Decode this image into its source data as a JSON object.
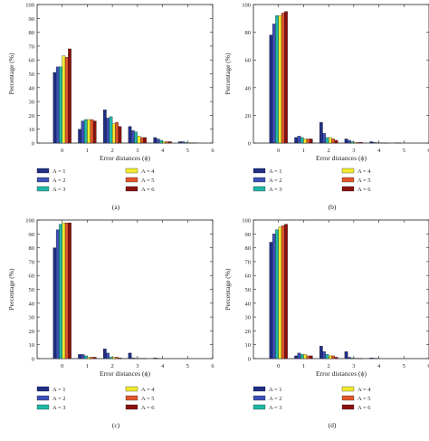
{
  "series_colors": [
    "#1f2e86",
    "#3d4fb4",
    "#20b8a6",
    "#f2ea2e",
    "#e0562b",
    "#8b1010"
  ],
  "chart_data": [
    {
      "type": "bar",
      "panel_label": "(a)",
      "xlabel": "Error distances (ϕ)",
      "ylabel": "Percentage (%)",
      "xlim": [
        -1,
        6
      ],
      "ylim": [
        0,
        100
      ],
      "x_ticks": [
        0,
        1,
        2,
        3,
        4,
        5,
        6
      ],
      "y_ticks": [
        0,
        10,
        20,
        30,
        40,
        50,
        60,
        70,
        80,
        90,
        100
      ],
      "categories": [
        0,
        1,
        2,
        3,
        4,
        5
      ],
      "series": [
        {
          "name": "A = 1",
          "values": [
            51,
            10,
            24,
            12,
            4,
            1
          ]
        },
        {
          "name": "A = 2",
          "values": [
            55,
            16,
            18,
            9,
            3,
            1
          ]
        },
        {
          "name": "A = 3",
          "values": [
            55,
            17,
            19,
            8,
            2,
            0.5
          ]
        },
        {
          "name": "A = 4",
          "values": [
            63,
            17,
            14,
            5,
            1,
            0.3
          ]
        },
        {
          "name": "A = 5",
          "values": [
            62,
            17,
            15,
            4,
            1,
            0.2
          ]
        },
        {
          "name": "A = 6",
          "values": [
            68,
            16,
            12,
            4,
            1,
            0.2
          ]
        }
      ]
    },
    {
      "type": "bar",
      "panel_label": "(b)",
      "xlabel": "Error distances (ϕ)",
      "ylabel": "Percentage (%)",
      "xlim": [
        -1,
        6
      ],
      "ylim": [
        0,
        100
      ],
      "x_ticks": [
        0,
        1,
        2,
        3,
        4,
        5,
        6
      ],
      "y_ticks": [
        0,
        20,
        40,
        60,
        80,
        100
      ],
      "categories": [
        0,
        1,
        2,
        3,
        4,
        5
      ],
      "series": [
        {
          "name": "A = 1",
          "values": [
            78,
            4,
            15,
            3,
            1,
            0.2
          ]
        },
        {
          "name": "A = 2",
          "values": [
            86,
            5,
            7,
            2,
            0.5,
            0.1
          ]
        },
        {
          "name": "A = 3",
          "values": [
            92,
            4,
            4,
            1,
            0.3,
            0
          ]
        },
        {
          "name": "A = 4",
          "values": [
            92,
            3,
            4,
            0.5,
            0.2,
            0
          ]
        },
        {
          "name": "A = 5",
          "values": [
            94,
            3,
            3,
            0.5,
            0.2,
            0
          ]
        },
        {
          "name": "A = 6",
          "values": [
            95,
            3,
            2,
            0.5,
            0.1,
            0
          ]
        }
      ]
    },
    {
      "type": "bar",
      "panel_label": "(c)",
      "xlabel": "Error distances (ϕ)",
      "ylabel": "Percentage (%)",
      "xlim": [
        -1,
        6
      ],
      "ylim": [
        0,
        100
      ],
      "x_ticks": [
        0,
        1,
        2,
        3,
        4,
        5,
        6
      ],
      "y_ticks": [
        0,
        10,
        20,
        30,
        40,
        50,
        60,
        70,
        80,
        90,
        100
      ],
      "categories": [
        0,
        1,
        2,
        3,
        4,
        5
      ],
      "series": [
        {
          "name": "A = 1",
          "values": [
            80,
            3,
            7,
            4,
            0.5,
            0
          ]
        },
        {
          "name": "A = 2",
          "values": [
            93,
            3,
            4,
            0.5,
            0.2,
            0
          ]
        },
        {
          "name": "A = 3",
          "values": [
            97,
            2,
            1,
            0.3,
            0,
            0
          ]
        },
        {
          "name": "A = 4",
          "values": [
            98,
            1,
            1,
            0.2,
            0,
            0
          ]
        },
        {
          "name": "A = 5",
          "values": [
            98,
            1,
            1,
            0.2,
            0,
            0
          ]
        },
        {
          "name": "A = 6",
          "values": [
            98,
            1,
            0.5,
            0.1,
            0,
            0
          ]
        }
      ]
    },
    {
      "type": "bar",
      "panel_label": "(d)",
      "xlabel": "Error distances (ϕ)",
      "ylabel": "Percentage (%)",
      "xlim": [
        -1,
        6
      ],
      "ylim": [
        0,
        100
      ],
      "x_ticks": [
        0,
        1,
        2,
        3,
        4,
        5,
        6
      ],
      "y_ticks": [
        0,
        10,
        20,
        30,
        40,
        50,
        60,
        70,
        80,
        90,
        100
      ],
      "categories": [
        0,
        1,
        2,
        3,
        4,
        5
      ],
      "series": [
        {
          "name": "A = 1",
          "values": [
            84,
            2,
            9,
            5,
            0.5,
            0
          ]
        },
        {
          "name": "A = 2",
          "values": [
            90,
            4,
            5,
            1,
            0.3,
            0
          ]
        },
        {
          "name": "A = 3",
          "values": [
            93,
            3,
            3,
            0.5,
            0.2,
            0
          ]
        },
        {
          "name": "A = 4",
          "values": [
            95,
            3,
            2,
            0.3,
            0,
            0
          ]
        },
        {
          "name": "A = 5",
          "values": [
            96,
            2,
            2,
            0.2,
            0,
            0
          ]
        },
        {
          "name": "A = 6",
          "values": [
            97,
            2,
            1,
            0.1,
            0,
            0
          ]
        }
      ]
    }
  ]
}
